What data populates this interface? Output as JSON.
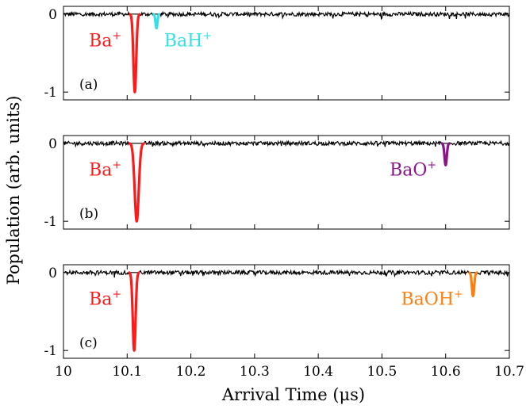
{
  "chart_data": {
    "type": "line",
    "xlabel": "Arrival Time (μs)",
    "ylabel": "Population (arb. units)",
    "xlim": [
      10,
      10.7
    ],
    "ylim": [
      -1.1,
      0.1
    ],
    "x_ticks": [
      "10",
      "10.1",
      "10.2",
      "10.3",
      "10.4",
      "10.5",
      "10.6",
      "10.7"
    ],
    "y_ticks": [
      "0",
      "-1"
    ],
    "grid": false,
    "trace_color": "#000000",
    "panels": [
      {
        "label": "(a)",
        "peaks": [
          {
            "ion": "Ba",
            "charge": "+",
            "color": "#ff1a1a",
            "center": 10.112,
            "depth": -1.0,
            "width": 0.0022,
            "label_x": 10.04,
            "label_y": -0.33
          },
          {
            "ion": "BaH",
            "charge": "+",
            "color": "#33e0e6",
            "center": 10.146,
            "depth": -0.18,
            "width": 0.0015,
            "label_x": 10.158,
            "label_y": -0.33
          }
        ]
      },
      {
        "label": "(b)",
        "peaks": [
          {
            "ion": "Ba",
            "charge": "+",
            "color": "#ff1a1a",
            "center": 10.115,
            "depth": -1.0,
            "width": 0.0032,
            "label_x": 10.04,
            "label_y": -0.33
          },
          {
            "ion": "BaO",
            "charge": "+",
            "color": "#8b148b",
            "center": 10.6,
            "depth": -0.28,
            "width": 0.0018,
            "label_x": 10.512,
            "label_y": -0.33
          }
        ]
      },
      {
        "label": "(c)",
        "peaks": [
          {
            "ion": "Ba",
            "charge": "+",
            "color": "#ff1a1a",
            "center": 10.111,
            "depth": -1.0,
            "width": 0.0022,
            "label_x": 10.04,
            "label_y": -0.33
          },
          {
            "ion": "BaOH",
            "charge": "+",
            "color": "#ff7f0e",
            "center": 10.643,
            "depth": -0.3,
            "width": 0.0018,
            "label_x": 10.53,
            "label_y": -0.33
          }
        ]
      }
    ]
  }
}
